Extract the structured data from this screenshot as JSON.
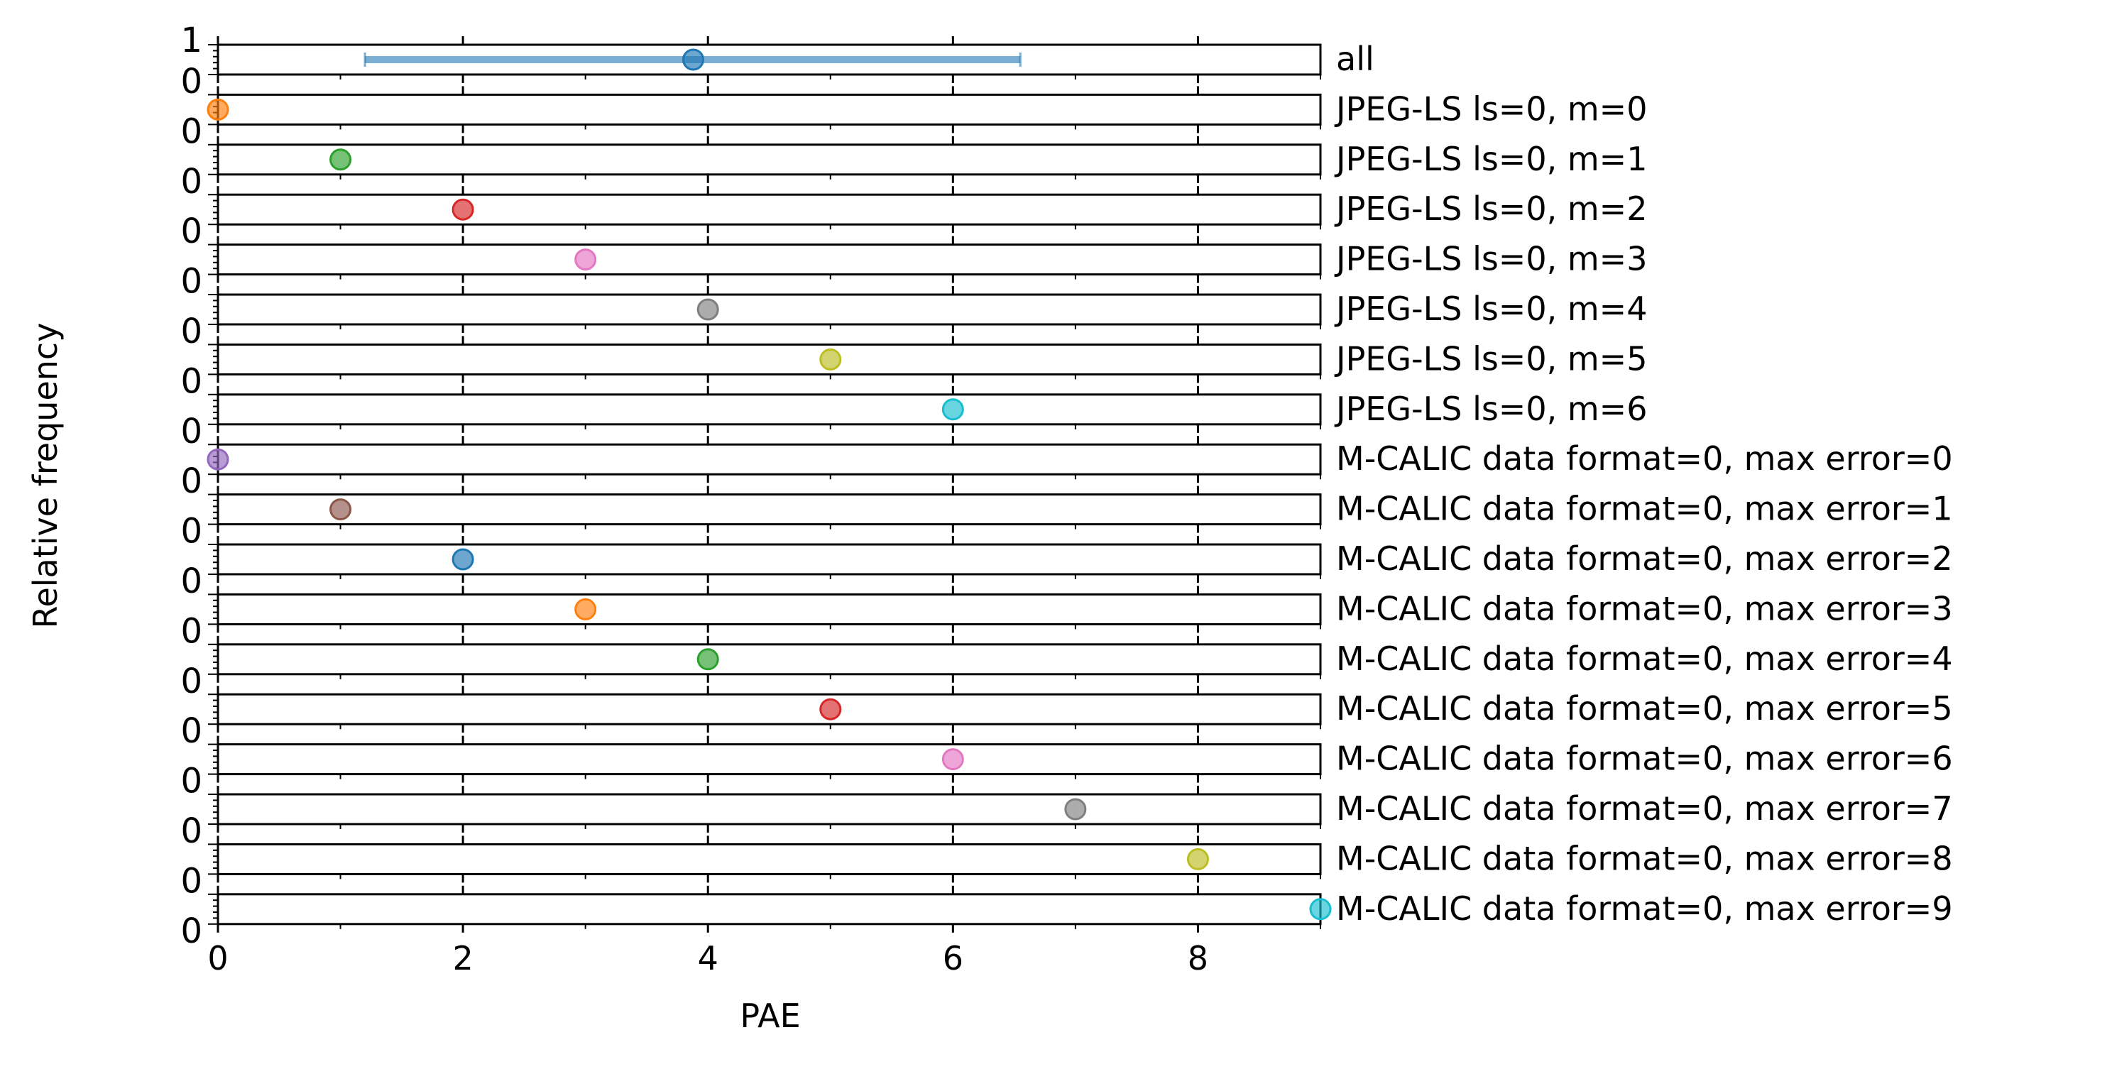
{
  "chart_data": {
    "type": "scatter",
    "xlabel": "PAE",
    "ylabel": "Relative frequency",
    "xlim": [
      0,
      9
    ],
    "ylim": [
      0,
      1
    ],
    "x_ticks": [
      "0",
      "2",
      "4",
      "6",
      "8"
    ],
    "y_ticks": [
      "0",
      "1"
    ],
    "y_tick_label_shown": "0",
    "grid": false,
    "series": [
      {
        "name": "all",
        "color": "#1f77b4",
        "x": 3.88,
        "y": 0.5,
        "error_range": [
          1.2,
          6.55
        ]
      },
      {
        "name": "JPEG-LS ls=0, m=0",
        "color": "#ff7f0e",
        "x": 0,
        "y": 0.5
      },
      {
        "name": "JPEG-LS ls=0, m=1",
        "color": "#2ca02c",
        "x": 1,
        "y": 0.5
      },
      {
        "name": "JPEG-LS ls=0, m=2",
        "color": "#d62728",
        "x": 2,
        "y": 0.5
      },
      {
        "name": "JPEG-LS ls=0, m=3",
        "color": "#e377c2",
        "x": 3,
        "y": 0.5
      },
      {
        "name": "JPEG-LS ls=0, m=4",
        "color": "#7f7f7f",
        "x": 4,
        "y": 0.5
      },
      {
        "name": "JPEG-LS ls=0, m=5",
        "color": "#bcbd22",
        "x": 5,
        "y": 0.5
      },
      {
        "name": "JPEG-LS ls=0, m=6",
        "color": "#17becf",
        "x": 6,
        "y": 0.5
      },
      {
        "name": "M-CALIC data format=0, max error=0",
        "color": "#9467bd",
        "x": 0,
        "y": 0.5
      },
      {
        "name": "M-CALIC data format=0, max error=1",
        "color": "#8c564b",
        "x": 1,
        "y": 0.5
      },
      {
        "name": "M-CALIC data format=0, max error=2",
        "color": "#1f77b4",
        "x": 2,
        "y": 0.5
      },
      {
        "name": "M-CALIC data format=0, max error=3",
        "color": "#ff7f0e",
        "x": 3,
        "y": 0.5
      },
      {
        "name": "M-CALIC data format=0, max error=4",
        "color": "#2ca02c",
        "x": 4,
        "y": 0.5
      },
      {
        "name": "M-CALIC data format=0, max error=5",
        "color": "#d62728",
        "x": 5,
        "y": 0.5
      },
      {
        "name": "M-CALIC data format=0, max error=6",
        "color": "#e377c2",
        "x": 6,
        "y": 0.5
      },
      {
        "name": "M-CALIC data format=0, max error=7",
        "color": "#7f7f7f",
        "x": 7,
        "y": 0.5
      },
      {
        "name": "M-CALIC data format=0, max error=8",
        "color": "#bcbd22",
        "x": 8,
        "y": 0.5
      },
      {
        "name": "M-CALIC data format=0, max error=9",
        "color": "#17becf",
        "x": 9,
        "y": 0.5
      }
    ]
  }
}
